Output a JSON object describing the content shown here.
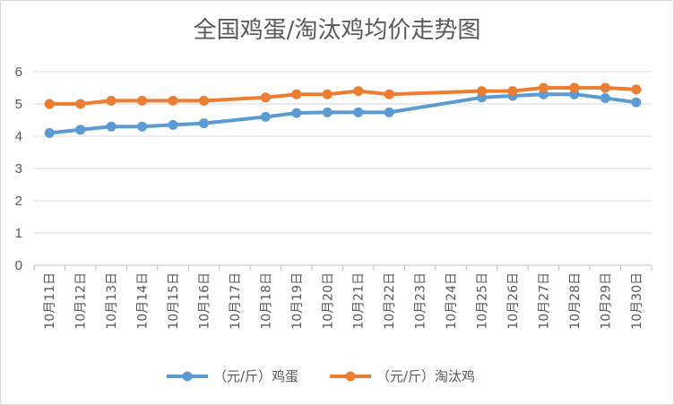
{
  "chart_data": {
    "type": "line",
    "title": "全国鸡蛋/淘汰鸡均价走势图",
    "xlabel": "",
    "ylabel": "",
    "ylim": [
      0,
      6
    ],
    "yticks": [
      0,
      1,
      2,
      3,
      4,
      5,
      6
    ],
    "grid": true,
    "legend_position": "bottom",
    "categories": [
      "10月11日",
      "10月12日",
      "10月13日",
      "10月14日",
      "10月15日",
      "10月16日",
      "10月17日",
      "10月18日",
      "10月19日",
      "10月20日",
      "10月21日",
      "10月22日",
      "10月23日",
      "10月24日",
      "10月25日",
      "10月26日",
      "10月27日",
      "10月28日",
      "10月29日",
      "10月30日"
    ],
    "series": [
      {
        "name": "（元/斤）鸡蛋",
        "color": "#5b9bd5",
        "values": [
          4.1,
          4.2,
          4.3,
          4.3,
          4.35,
          4.4,
          null,
          4.6,
          4.72,
          4.74,
          4.74,
          4.74,
          null,
          null,
          5.2,
          5.25,
          5.3,
          5.3,
          5.18,
          5.05
        ]
      },
      {
        "name": "（元/斤）淘汰鸡",
        "color": "#ed7d31",
        "values": [
          5.0,
          5.0,
          5.1,
          5.1,
          5.1,
          5.1,
          null,
          5.2,
          5.3,
          5.3,
          5.4,
          5.3,
          null,
          null,
          5.4,
          5.4,
          5.5,
          5.5,
          5.5,
          5.45
        ]
      }
    ]
  }
}
